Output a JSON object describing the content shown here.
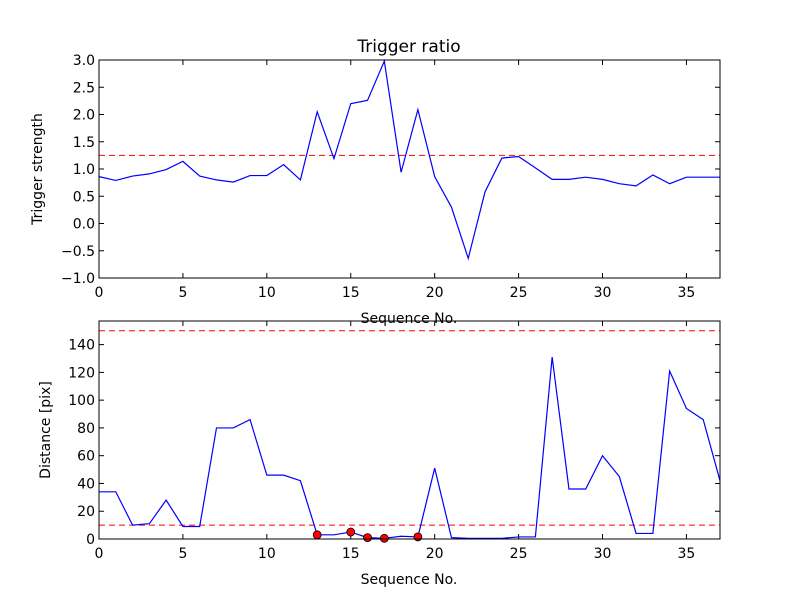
{
  "chart_data": [
    {
      "type": "line",
      "title": "Trigger ratio",
      "xlabel": "Sequence No.",
      "ylabel": "Trigger strength",
      "xlim": [
        0,
        37
      ],
      "ylim": [
        -1.0,
        3.0
      ],
      "xticks": [
        "0",
        "5",
        "10",
        "15",
        "20",
        "25",
        "30",
        "35"
      ],
      "yticks": [
        "−1.0",
        "−0.5",
        "0.0",
        "0.5",
        "1.0",
        "1.5",
        "2.0",
        "2.5",
        "3.0"
      ],
      "grid": false,
      "line_color": "#0000ff",
      "threshold_color": "#ff0000",
      "thresholds": [
        1.25
      ],
      "series": [
        {
          "x": [
            0,
            1,
            2,
            3,
            4,
            5,
            6,
            7,
            8,
            9,
            10,
            11,
            12,
            13,
            14,
            15,
            16,
            17,
            18,
            19,
            20,
            21,
            22,
            23,
            24,
            25,
            26,
            27,
            28,
            29,
            30,
            31,
            32,
            33,
            34,
            35,
            36,
            37
          ],
          "values": [
            0.86,
            0.79,
            0.87,
            0.91,
            0.99,
            1.14,
            0.87,
            0.8,
            0.76,
            0.88,
            0.88,
            1.08,
            0.8,
            2.05,
            1.19,
            2.2,
            2.26,
            2.98,
            0.94,
            2.09,
            0.86,
            0.3,
            -0.64,
            0.58,
            1.2,
            1.23,
            1.02,
            0.81,
            0.81,
            0.85,
            0.81,
            0.73,
            0.69,
            0.89,
            0.73,
            0.85,
            0.85,
            0.85
          ]
        }
      ]
    },
    {
      "type": "line",
      "title": "",
      "xlabel": "Sequence No.",
      "ylabel": "Distance [pix]",
      "xlim": [
        0,
        37
      ],
      "ylim": [
        0,
        157
      ],
      "xticks": [
        "0",
        "5",
        "10",
        "15",
        "20",
        "25",
        "30",
        "35"
      ],
      "yticks": [
        "0",
        "20",
        "40",
        "60",
        "80",
        "100",
        "120",
        "140"
      ],
      "grid": false,
      "line_color": "#0000ff",
      "threshold_color": "#ff0000",
      "marker_color": "#ff0000",
      "thresholds": [
        10,
        150
      ],
      "series": [
        {
          "x": [
            0,
            1,
            2,
            3,
            4,
            5,
            6,
            7,
            8,
            9,
            10,
            11,
            12,
            13,
            14,
            15,
            16,
            17,
            18,
            19,
            20,
            21,
            22,
            23,
            24,
            25,
            26,
            27,
            28,
            29,
            30,
            31,
            32,
            33,
            34,
            35,
            36,
            37
          ],
          "values": [
            34,
            34,
            10,
            11,
            28,
            9,
            9,
            80,
            80,
            86,
            46,
            46,
            42,
            3,
            3,
            5,
            1,
            0.5,
            2,
            1.5,
            51,
            1,
            0.5,
            0.5,
            0.5,
            1.5,
            1.5,
            131,
            36,
            36,
            60,
            45,
            4,
            4,
            121,
            94,
            86,
            42
          ]
        }
      ],
      "markers": {
        "x": [
          13,
          15,
          16,
          17,
          19
        ],
        "values": [
          3,
          5,
          1,
          0.5,
          1.5
        ]
      }
    }
  ]
}
